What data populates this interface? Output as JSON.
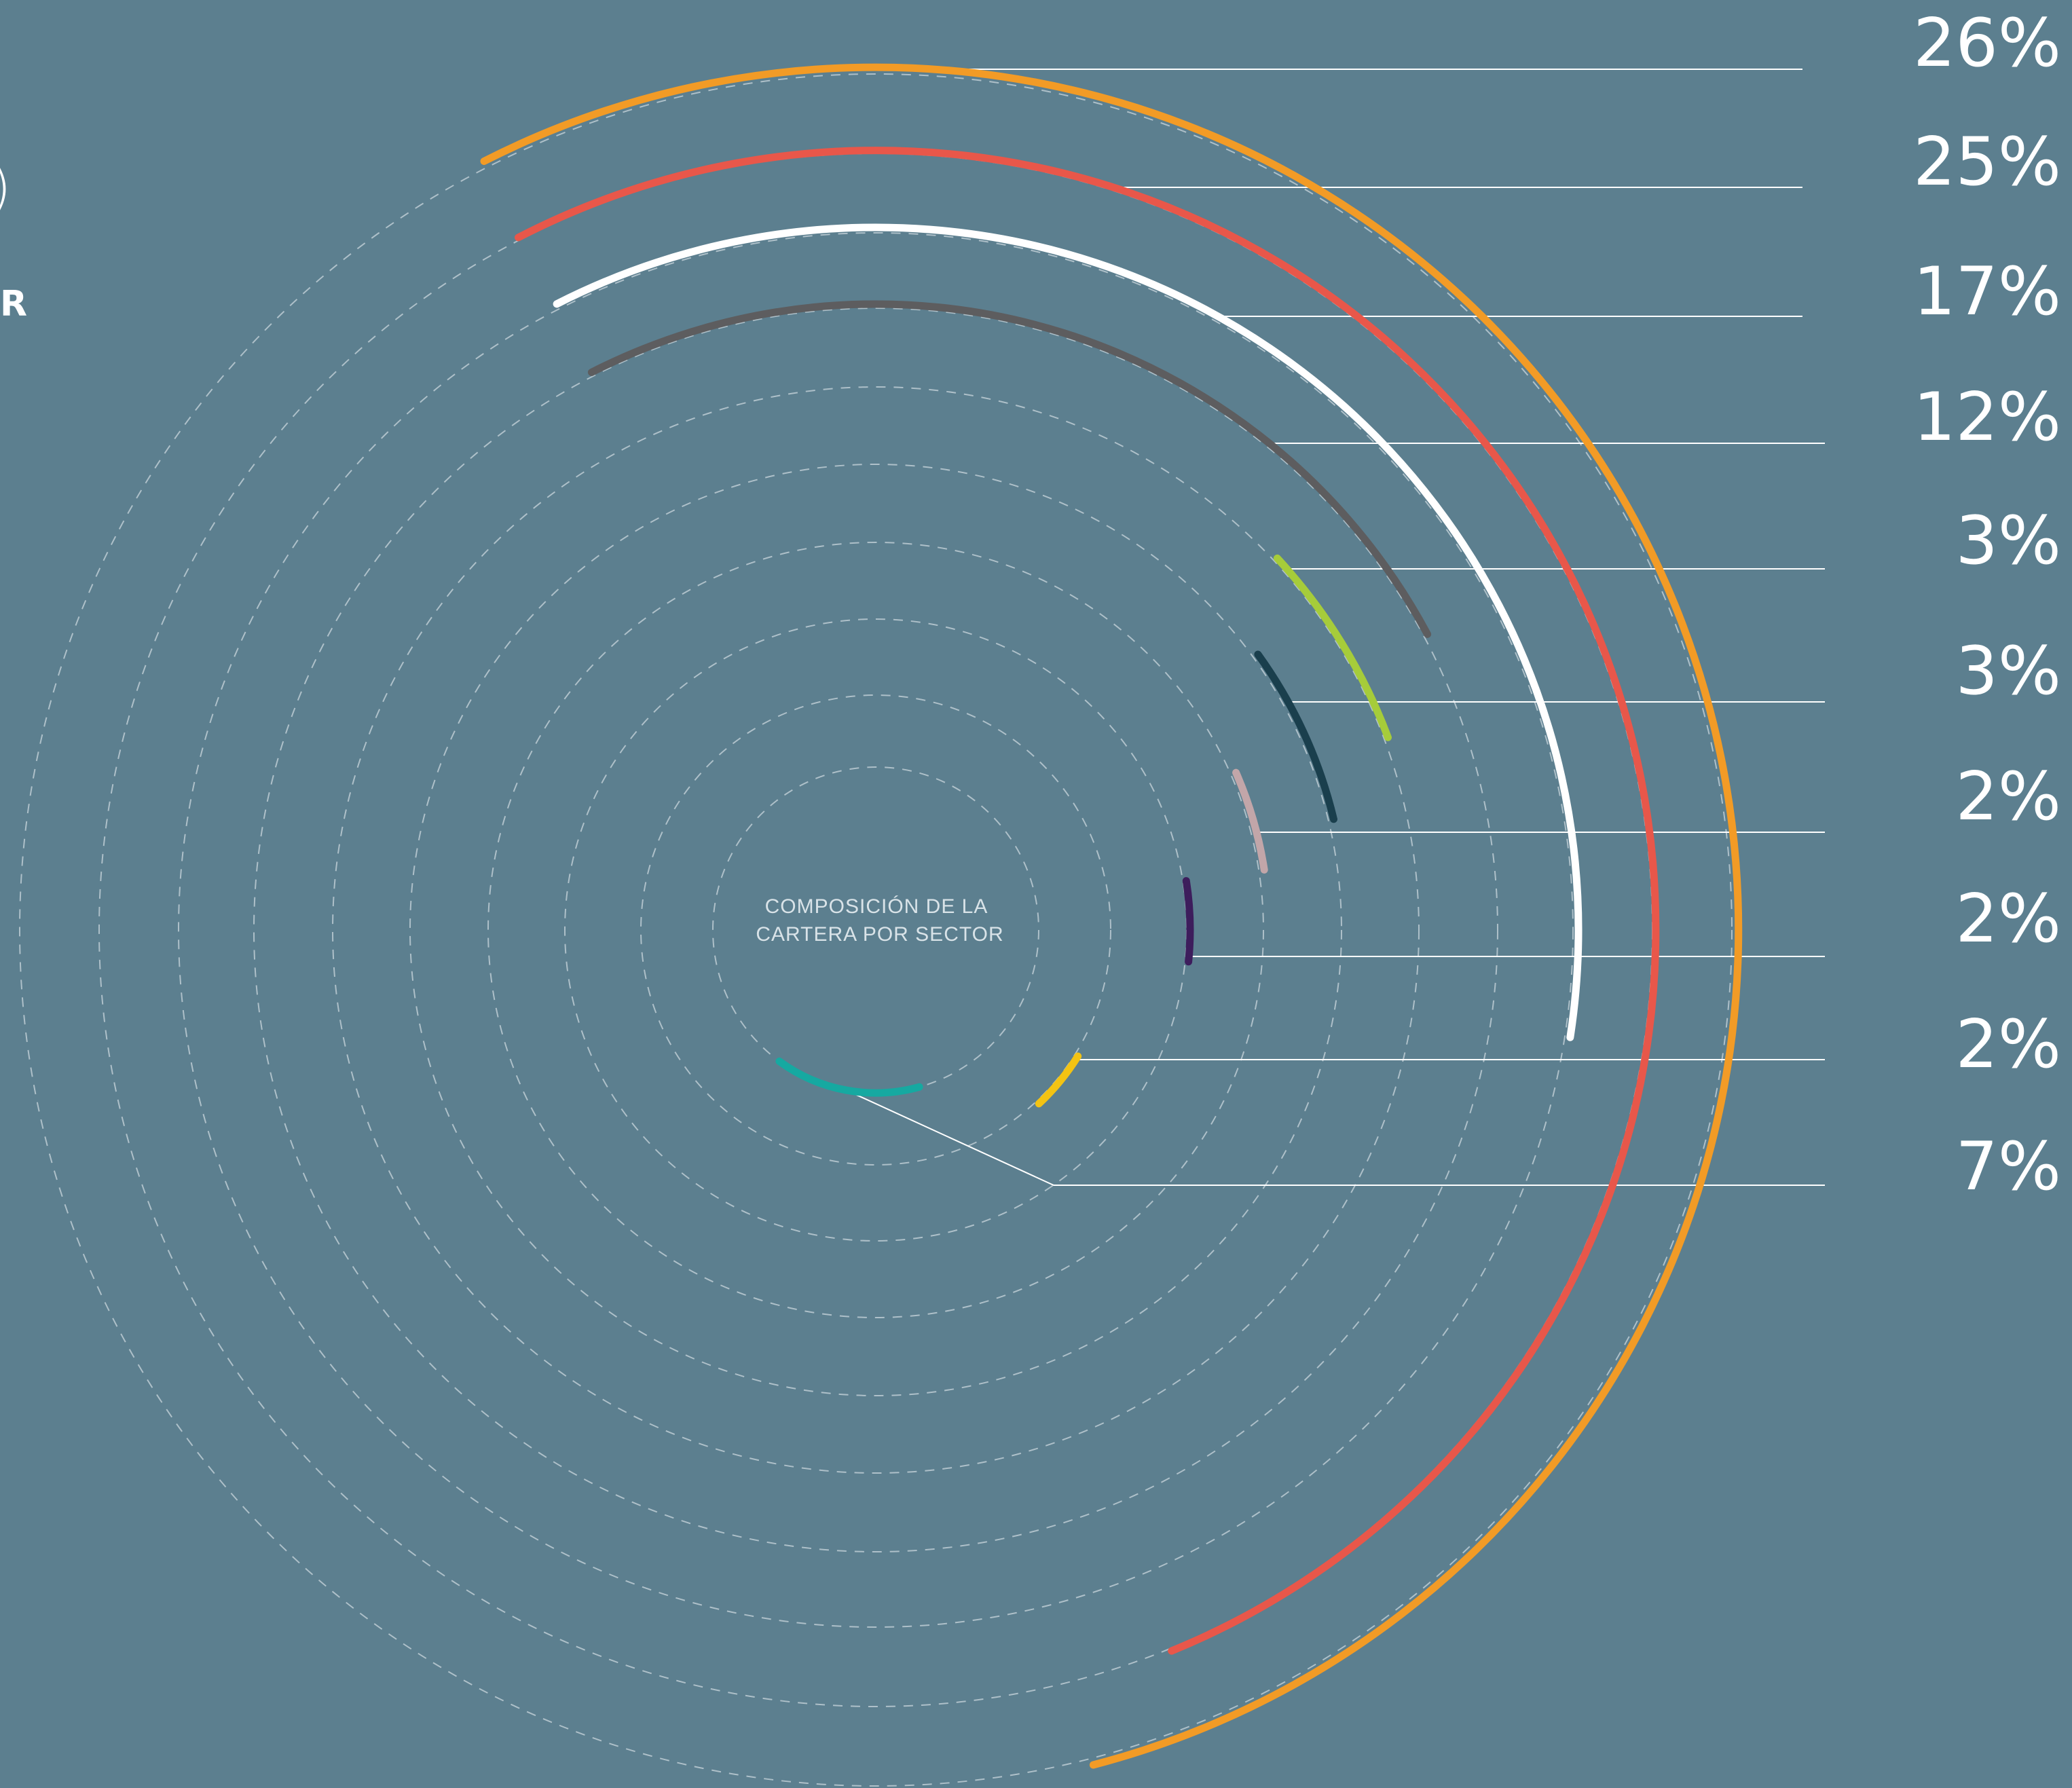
{
  "center_label": {
    "line1": "COMPOSICIÓN DE LA",
    "line2": "CARTERA POR SECTOR"
  },
  "clipped_text": {
    "paren": ")",
    "letter": "R"
  },
  "colors": {
    "background": "#5c7f8f",
    "leader_line": "#ffffff",
    "guide_ring": "#c9d6dc"
  },
  "chart_data": {
    "type": "radial_bar",
    "title": "",
    "center_label": "COMPOSICIÓN DE LA CARTERA POR SECTOR",
    "series": [
      {
        "value": 26,
        "label": "26%",
        "color": "#f29b26"
      },
      {
        "value": 25,
        "label": "25%",
        "color": "#e8574a"
      },
      {
        "value": 17,
        "label": "17%",
        "color": "#ffffff"
      },
      {
        "value": 12,
        "label": "12%",
        "color": "#5d5d5f"
      },
      {
        "value": 3,
        "label": "3%",
        "color": "#a6cc3a"
      },
      {
        "value": 3,
        "label": "3%",
        "color": "#1a3f4d"
      },
      {
        "value": 2,
        "label": "2%",
        "color": "#c2a6a9"
      },
      {
        "value": 2,
        "label": "2%",
        "color": "#3d1d5c"
      },
      {
        "value": 2,
        "label": "2%",
        "color": "#f3c313"
      },
      {
        "value": 7,
        "label": "7%",
        "color": "#16a9a1"
      }
    ],
    "legend": "none",
    "grid": "dashed concentric rings"
  }
}
